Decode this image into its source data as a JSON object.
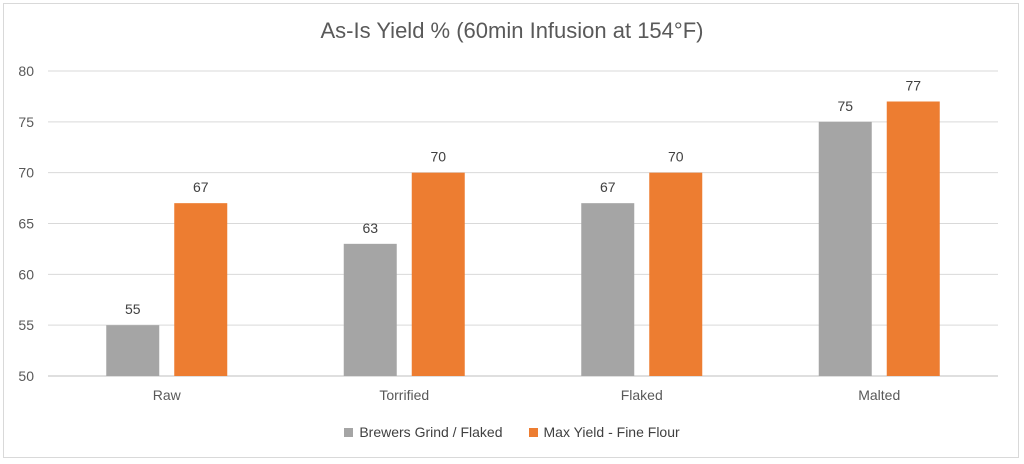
{
  "chart_data": {
    "type": "bar",
    "title": "As-Is Yield % (60min Infusion at 154°F)",
    "categories": [
      "Raw",
      "Torrified",
      "Flaked",
      "Malted"
    ],
    "series": [
      {
        "name": "Brewers Grind / Flaked",
        "values": [
          55,
          63,
          67,
          75
        ],
        "color": "#a5a5a5"
      },
      {
        "name": "Max Yield - Fine Flour",
        "values": [
          67,
          70,
          70,
          77
        ],
        "color": "#ed7d31"
      }
    ],
    "ylim": [
      50,
      80
    ],
    "yticks": [
      50,
      55,
      60,
      65,
      70,
      75,
      80
    ],
    "grid": true,
    "legend_position": "bottom",
    "data_labels": true
  }
}
